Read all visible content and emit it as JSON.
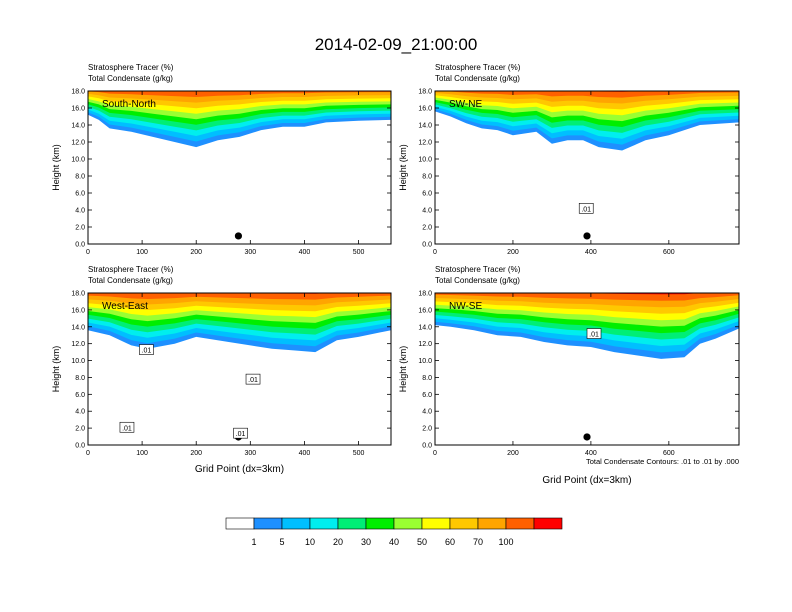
{
  "title": "2014-02-09_21:00:00",
  "contour_info": "Total Condensate Contours: .01 to .01 by .000",
  "colorbar": {
    "labels": [
      "1",
      "5",
      "10",
      "20",
      "30",
      "40",
      "50",
      "60",
      "70",
      "100"
    ],
    "colors": [
      "#ffffff",
      "#1e90ff",
      "#00bfff",
      "#00eeee",
      "#00ee76",
      "#00ee00",
      "#9aff32",
      "#ffff00",
      "#ffc800",
      "#ffa500",
      "#ff6000",
      "#ff0000"
    ]
  },
  "chart_data": [
    {
      "type": "heatmap",
      "label_top1": "Stratosphere Tracer   (%)",
      "label_top2": "Total Condensate   (g/kg)",
      "name": "South-North",
      "ylabel": "Height (km)",
      "xlabel": "",
      "xlim": [
        0,
        560
      ],
      "ylim": [
        0,
        18
      ],
      "xticks": [
        0,
        100,
        200,
        300,
        400,
        500
      ],
      "yticks": [
        "0.0",
        "2.0",
        "4.0",
        "6.0",
        "8.0",
        "10.0",
        "12.0",
        "14.0",
        "16.0",
        "18.0"
      ],
      "marker_x": 278,
      "boundary": [
        [
          0,
          15.2
        ],
        [
          20,
          14.6
        ],
        [
          40,
          13.6
        ],
        [
          80,
          13.2
        ],
        [
          120,
          12.6
        ],
        [
          160,
          12.0
        ],
        [
          200,
          11.4
        ],
        [
          240,
          12.2
        ],
        [
          280,
          12.6
        ],
        [
          320,
          13.4
        ],
        [
          360,
          13.8
        ],
        [
          400,
          13.8
        ],
        [
          440,
          14.3
        ],
        [
          500,
          14.5
        ],
        [
          560,
          14.6
        ]
      ],
      "contour_labels": []
    },
    {
      "type": "heatmap",
      "label_top1": "Stratosphere Tracer   (%)",
      "label_top2": "Total Condensate   (g/kg)",
      "name": "SW-NE",
      "ylabel": "Height (km)",
      "xlabel": "",
      "xlim": [
        0,
        780
      ],
      "ylim": [
        0,
        18
      ],
      "xticks": [
        0,
        200,
        400,
        600
      ],
      "yticks": [
        "0.0",
        "2.0",
        "4.0",
        "6.0",
        "8.0",
        "10.0",
        "12.0",
        "14.0",
        "16.0",
        "18.0"
      ],
      "marker_x": 390,
      "boundary": [
        [
          0,
          15.6
        ],
        [
          40,
          15.0
        ],
        [
          80,
          14.2
        ],
        [
          120,
          13.6
        ],
        [
          160,
          13.4
        ],
        [
          200,
          12.8
        ],
        [
          260,
          13.2
        ],
        [
          300,
          11.8
        ],
        [
          340,
          12.2
        ],
        [
          380,
          12.2
        ],
        [
          420,
          11.4
        ],
        [
          480,
          11.0
        ],
        [
          540,
          12.2
        ],
        [
          600,
          12.8
        ],
        [
          680,
          14.0
        ],
        [
          780,
          14.3
        ]
      ],
      "contour_labels": [
        {
          "x": 388,
          "y": 4.2,
          "text": ".01"
        }
      ]
    },
    {
      "type": "heatmap",
      "label_top1": "Stratosphere Tracer   (%)",
      "label_top2": "Total Condensate   (g/kg)",
      "name": "West-East",
      "ylabel": "Height (km)",
      "xlabel": "Grid Point (dx=3km)",
      "xlim": [
        0,
        560
      ],
      "ylim": [
        0,
        18
      ],
      "xticks": [
        0,
        100,
        200,
        300,
        400,
        500
      ],
      "yticks": [
        "0.0",
        "2.0",
        "4.0",
        "6.0",
        "8.0",
        "10.0",
        "12.0",
        "14.0",
        "16.0",
        "18.0"
      ],
      "marker_x": 278,
      "boundary": [
        [
          0,
          13.6
        ],
        [
          40,
          13.0
        ],
        [
          80,
          11.8
        ],
        [
          110,
          11.4
        ],
        [
          160,
          12.0
        ],
        [
          200,
          12.8
        ],
        [
          260,
          12.2
        ],
        [
          300,
          11.8
        ],
        [
          340,
          11.4
        ],
        [
          380,
          11.2
        ],
        [
          420,
          11.0
        ],
        [
          460,
          12.4
        ],
        [
          500,
          12.8
        ],
        [
          560,
          13.6
        ]
      ],
      "contour_labels": [
        {
          "x": 108,
          "y": 11.3,
          "text": ".01"
        },
        {
          "x": 305,
          "y": 7.8,
          "text": ".01"
        },
        {
          "x": 72,
          "y": 2.1,
          "text": ".01"
        },
        {
          "x": 282,
          "y": 1.4,
          "text": ".01"
        }
      ]
    },
    {
      "type": "heatmap",
      "label_top1": "Stratosphere Tracer   (%)",
      "label_top2": "Total Condensate   (g/kg)",
      "name": "NW-SE",
      "ylabel": "Height (km)",
      "xlabel": "Grid Point (dx=3km)",
      "xlim": [
        0,
        780
      ],
      "ylim": [
        0,
        18
      ],
      "xticks": [
        0,
        200,
        400,
        600
      ],
      "yticks": [
        "0.0",
        "2.0",
        "4.0",
        "6.0",
        "8.0",
        "10.0",
        "12.0",
        "14.0",
        "16.0",
        "18.0"
      ],
      "marker_x": 390,
      "boundary": [
        [
          0,
          14.2
        ],
        [
          40,
          14.0
        ],
        [
          100,
          13.6
        ],
        [
          160,
          13.0
        ],
        [
          220,
          12.8
        ],
        [
          280,
          12.2
        ],
        [
          340,
          11.8
        ],
        [
          400,
          11.6
        ],
        [
          460,
          11.0
        ],
        [
          520,
          10.6
        ],
        [
          580,
          10.2
        ],
        [
          640,
          10.4
        ],
        [
          680,
          12.0
        ],
        [
          720,
          12.6
        ],
        [
          780,
          13.8
        ]
      ],
      "contour_labels": [
        {
          "x": 408,
          "y": 13.2,
          "text": ".01"
        }
      ]
    }
  ]
}
